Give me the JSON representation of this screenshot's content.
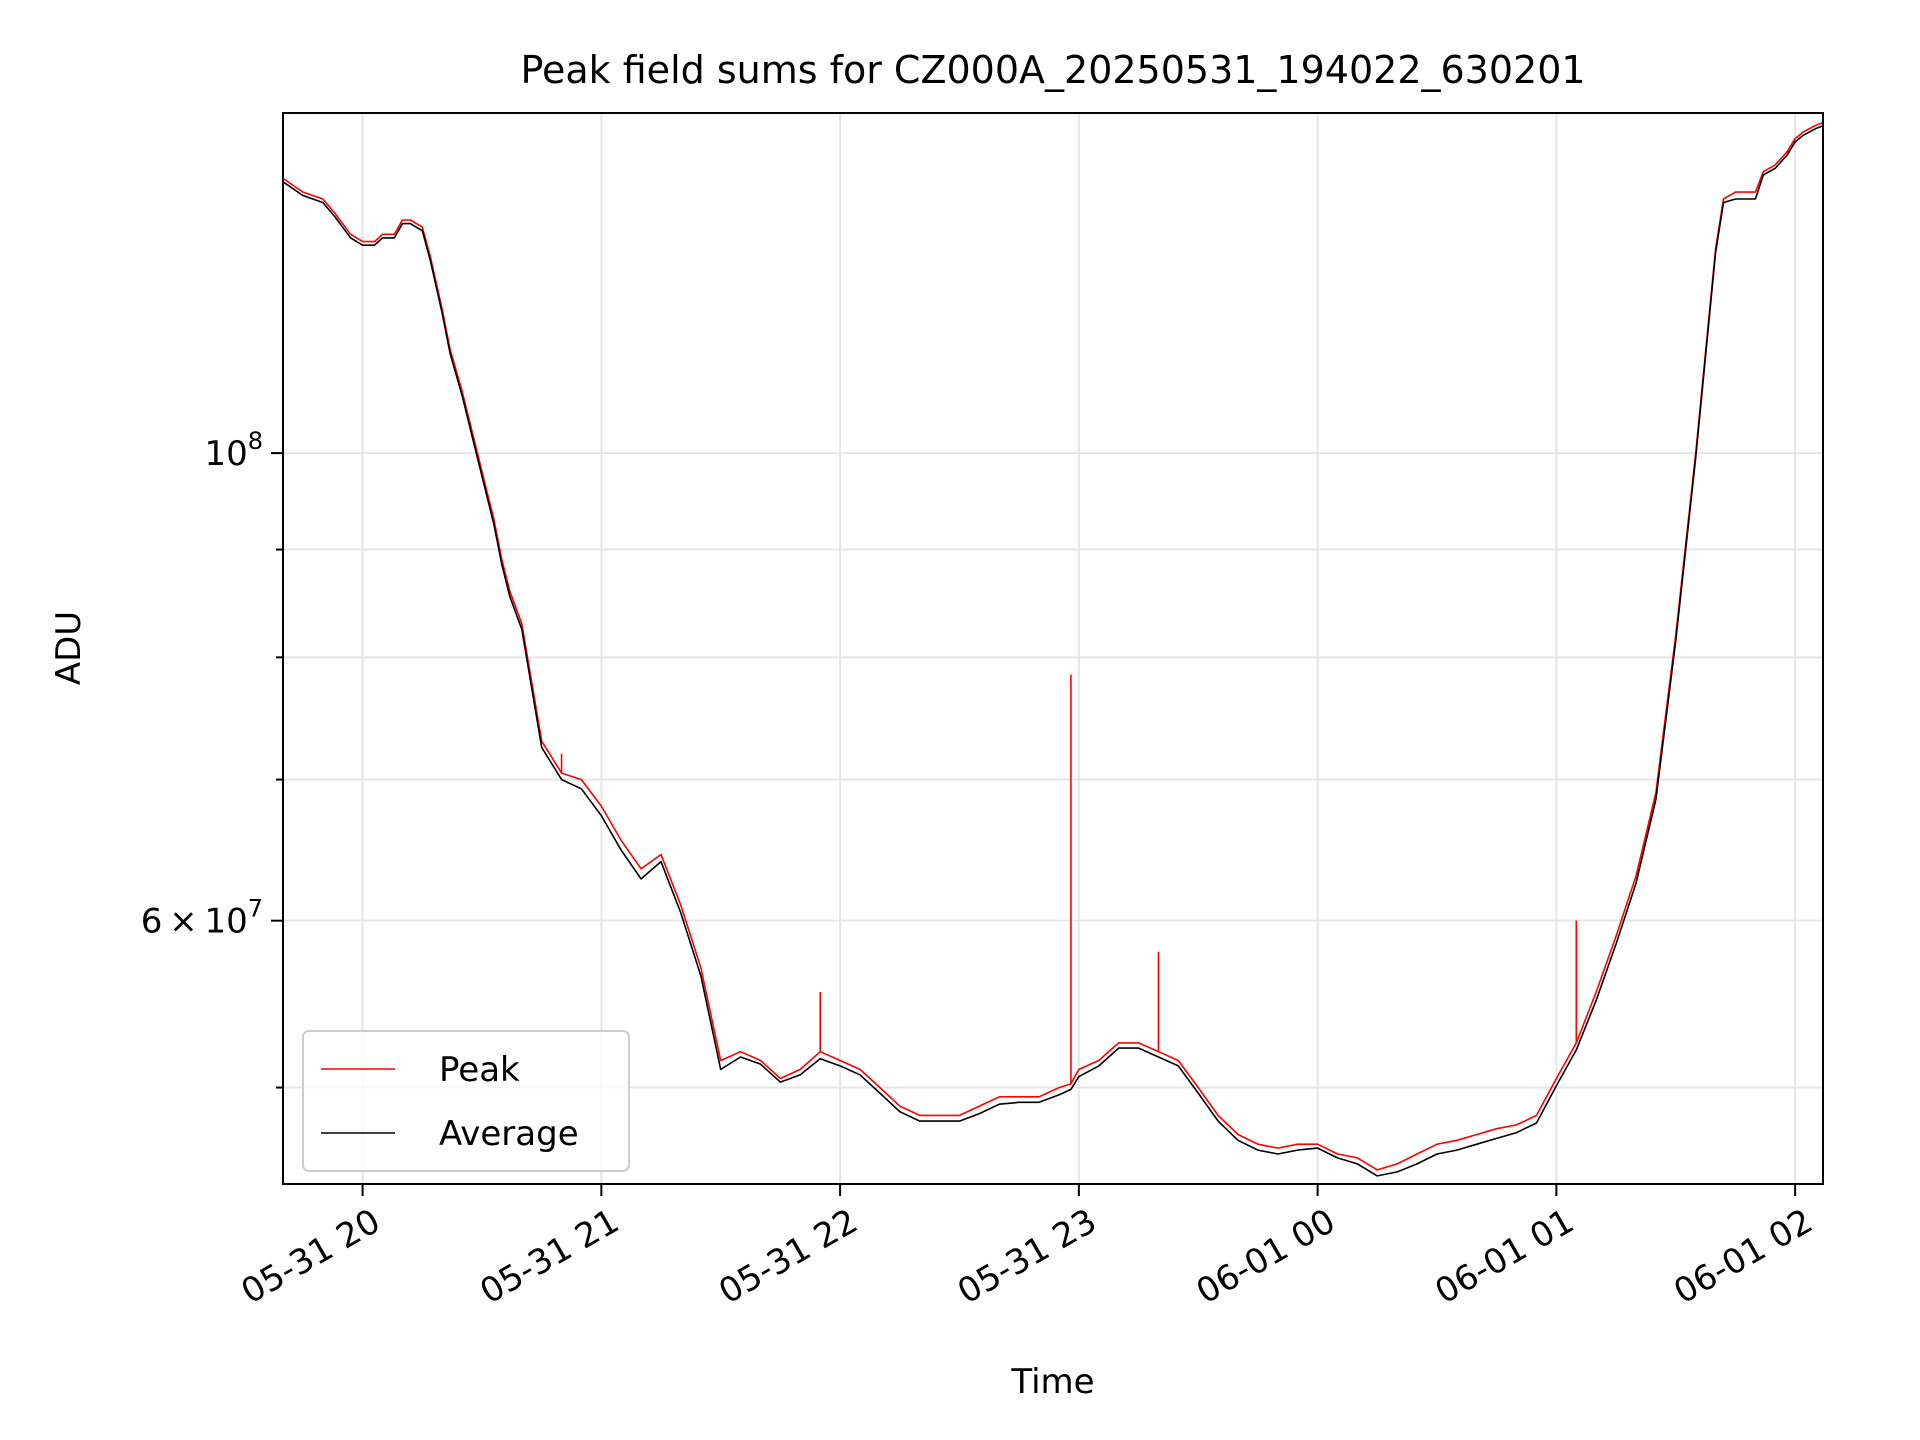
{
  "chart_data": {
    "type": "line",
    "title": "Peak field sums for CZ000A_20250531_194022_630201",
    "xlabel": "Time",
    "ylabel": "ADU",
    "x_scale": "time",
    "y_scale": "log",
    "xlim": [
      "2025-05-31 19:40",
      "2025-06-01 02:07"
    ],
    "ylim": [
      45000000,
      145000000
    ],
    "x_ticks": [
      {
        "value": "2025-05-31 20:00",
        "label": "05-31 20"
      },
      {
        "value": "2025-05-31 21:00",
        "label": "05-31 21"
      },
      {
        "value": "2025-05-31 22:00",
        "label": "05-31 22"
      },
      {
        "value": "2025-05-31 23:00",
        "label": "05-31 23"
      },
      {
        "value": "2025-06-01 00:00",
        "label": "06-01 00"
      },
      {
        "value": "2025-06-01 01:00",
        "label": "06-01 01"
      },
      {
        "value": "2025-06-01 02:00",
        "label": "06-01 02"
      }
    ],
    "y_major_ticks": [
      {
        "value": 60000000,
        "mantissa": "6",
        "exponent": "7"
      },
      {
        "value": 100000000,
        "mantissa": "",
        "exponent": "8"
      }
    ],
    "y_minor_ticks": [
      50000000,
      70000000,
      80000000,
      90000000
    ],
    "grid": true,
    "legend": {
      "position": "lower-left"
    },
    "series": [
      {
        "name": "Peak",
        "color": "#ff0000",
        "x": [
          "2025-05-31 19:40",
          "2025-05-31 19:45",
          "2025-05-31 19:50",
          "2025-05-31 19:53",
          "2025-05-31 19:57",
          "2025-05-31 20:00",
          "2025-05-31 20:03",
          "2025-05-31 20:05",
          "2025-05-31 20:08",
          "2025-05-31 20:10",
          "2025-05-31 20:12",
          "2025-05-31 20:15",
          "2025-05-31 20:17",
          "2025-05-31 20:20",
          "2025-05-31 20:22",
          "2025-05-31 20:25",
          "2025-05-31 20:30",
          "2025-05-31 20:33",
          "2025-05-31 20:35",
          "2025-05-31 20:37",
          "2025-05-31 20:40",
          "2025-05-31 20:45",
          "2025-05-31 20:50",
          "2025-05-31 20:55",
          "2025-05-31 21:00",
          "2025-05-31 21:05",
          "2025-05-31 21:10",
          "2025-05-31 21:15",
          "2025-05-31 21:20",
          "2025-05-31 21:25",
          "2025-05-31 21:30",
          "2025-05-31 21:35",
          "2025-05-31 21:40",
          "2025-05-31 21:45",
          "2025-05-31 21:50",
          "2025-05-31 21:55",
          "2025-05-31 22:00",
          "2025-05-31 22:05",
          "2025-05-31 22:10",
          "2025-05-31 22:15",
          "2025-05-31 22:20",
          "2025-05-31 22:25",
          "2025-05-31 22:30",
          "2025-05-31 22:35",
          "2025-05-31 22:40",
          "2025-05-31 22:45",
          "2025-05-31 22:50",
          "2025-05-31 22:55",
          "2025-05-31 22:58",
          "2025-05-31 23:00",
          "2025-05-31 23:05",
          "2025-05-31 23:10",
          "2025-05-31 23:15",
          "2025-05-31 23:20",
          "2025-05-31 23:25",
          "2025-05-31 23:30",
          "2025-05-31 23:35",
          "2025-05-31 23:40",
          "2025-05-31 23:45",
          "2025-05-31 23:50",
          "2025-05-31 23:55",
          "2025-06-01 00:00",
          "2025-06-01 00:05",
          "2025-06-01 00:10",
          "2025-06-01 00:15",
          "2025-06-01 00:20",
          "2025-06-01 00:25",
          "2025-06-01 00:30",
          "2025-06-01 00:35",
          "2025-06-01 00:40",
          "2025-06-01 00:45",
          "2025-06-01 00:50",
          "2025-06-01 00:55",
          "2025-06-01 01:00",
          "2025-06-01 01:05",
          "2025-06-01 01:10",
          "2025-06-01 01:15",
          "2025-06-01 01:20",
          "2025-06-01 01:25",
          "2025-06-01 01:30",
          "2025-06-01 01:35",
          "2025-06-01 01:40",
          "2025-06-01 01:42",
          "2025-06-01 01:45",
          "2025-06-01 01:50",
          "2025-06-01 01:52",
          "2025-06-01 01:55",
          "2025-06-01 01:58",
          "2025-06-01 02:00",
          "2025-06-01 02:02",
          "2025-06-01 02:05",
          "2025-06-01 02:07"
        ],
        "y": [
          135000000,
          133000000,
          132000000,
          130000000,
          127000000,
          126000000,
          126000000,
          127000000,
          127000000,
          129000000,
          129000000,
          128000000,
          124000000,
          117000000,
          112000000,
          107000000,
          98000000,
          93000000,
          89000000,
          86000000,
          83000000,
          73000000,
          70500000,
          70000000,
          68000000,
          65500000,
          63500000,
          64500000,
          61000000,
          57000000,
          51500000,
          52000000,
          51500000,
          50500000,
          51000000,
          52000000,
          51500000,
          51000000,
          50000000,
          49000000,
          48500000,
          48500000,
          48500000,
          49000000,
          49500000,
          49500000,
          49500000,
          50000000,
          50200000,
          51000000,
          51500000,
          52500000,
          52500000,
          52000000,
          51500000,
          50000000,
          48500000,
          47500000,
          47000000,
          46800000,
          47000000,
          47000000,
          46500000,
          46300000,
          45700000,
          46000000,
          46500000,
          47000000,
          47200000,
          47500000,
          47800000,
          48000000,
          48500000,
          50500000,
          52500000,
          55500000,
          59000000,
          63000000,
          69000000,
          82000000,
          100000000,
          125000000,
          132000000,
          133000000,
          133000000,
          136000000,
          137000000,
          139000000,
          141000000,
          142000000,
          143000000,
          143500000
        ]
      },
      {
        "name": "Average",
        "color": "#000000",
        "x": [
          "2025-05-31 19:40",
          "2025-05-31 19:45",
          "2025-05-31 19:50",
          "2025-05-31 19:53",
          "2025-05-31 19:57",
          "2025-05-31 20:00",
          "2025-05-31 20:03",
          "2025-05-31 20:05",
          "2025-05-31 20:08",
          "2025-05-31 20:10",
          "2025-05-31 20:12",
          "2025-05-31 20:15",
          "2025-05-31 20:17",
          "2025-05-31 20:20",
          "2025-05-31 20:22",
          "2025-05-31 20:25",
          "2025-05-31 20:30",
          "2025-05-31 20:33",
          "2025-05-31 20:35",
          "2025-05-31 20:37",
          "2025-05-31 20:40",
          "2025-05-31 20:45",
          "2025-05-31 20:50",
          "2025-05-31 20:55",
          "2025-05-31 21:00",
          "2025-05-31 21:05",
          "2025-05-31 21:10",
          "2025-05-31 21:15",
          "2025-05-31 21:20",
          "2025-05-31 21:25",
          "2025-05-31 21:30",
          "2025-05-31 21:35",
          "2025-05-31 21:40",
          "2025-05-31 21:45",
          "2025-05-31 21:50",
          "2025-05-31 21:55",
          "2025-05-31 22:00",
          "2025-05-31 22:05",
          "2025-05-31 22:10",
          "2025-05-31 22:15",
          "2025-05-31 22:20",
          "2025-05-31 22:25",
          "2025-05-31 22:30",
          "2025-05-31 22:35",
          "2025-05-31 22:40",
          "2025-05-31 22:45",
          "2025-05-31 22:50",
          "2025-05-31 22:55",
          "2025-05-31 22:58",
          "2025-05-31 23:00",
          "2025-05-31 23:05",
          "2025-05-31 23:10",
          "2025-05-31 23:15",
          "2025-05-31 23:20",
          "2025-05-31 23:25",
          "2025-05-31 23:30",
          "2025-05-31 23:35",
          "2025-05-31 23:40",
          "2025-05-31 23:45",
          "2025-05-31 23:50",
          "2025-05-31 23:55",
          "2025-06-01 00:00",
          "2025-06-01 00:05",
          "2025-06-01 00:10",
          "2025-06-01 00:15",
          "2025-06-01 00:20",
          "2025-06-01 00:25",
          "2025-06-01 00:30",
          "2025-06-01 00:35",
          "2025-06-01 00:40",
          "2025-06-01 00:45",
          "2025-06-01 00:50",
          "2025-06-01 00:55",
          "2025-06-01 01:00",
          "2025-06-01 01:05",
          "2025-06-01 01:10",
          "2025-06-01 01:15",
          "2025-06-01 01:20",
          "2025-06-01 01:25",
          "2025-06-01 01:30",
          "2025-06-01 01:35",
          "2025-06-01 01:40",
          "2025-06-01 01:42",
          "2025-06-01 01:45",
          "2025-06-01 01:50",
          "2025-06-01 01:52",
          "2025-06-01 01:55",
          "2025-06-01 01:58",
          "2025-06-01 02:00",
          "2025-06-01 02:02",
          "2025-06-01 02:05",
          "2025-06-01 02:07"
        ],
        "y": [
          134500000,
          132500000,
          131500000,
          129500000,
          126500000,
          125500000,
          125500000,
          126500000,
          126500000,
          128500000,
          128500000,
          127500000,
          123500000,
          116500000,
          111500000,
          106500000,
          97500000,
          92500000,
          88500000,
          85500000,
          82500000,
          72500000,
          70000000,
          69300000,
          67300000,
          64800000,
          62800000,
          64000000,
          60500000,
          56500000,
          51000000,
          51700000,
          51300000,
          50300000,
          50700000,
          51600000,
          51200000,
          50700000,
          49700000,
          48700000,
          48200000,
          48200000,
          48200000,
          48600000,
          49100000,
          49200000,
          49200000,
          49600000,
          49900000,
          50600000,
          51200000,
          52200000,
          52200000,
          51700000,
          51200000,
          49700000,
          48200000,
          47200000,
          46700000,
          46500000,
          46700000,
          46800000,
          46300000,
          46000000,
          45400000,
          45600000,
          46000000,
          46500000,
          46700000,
          47000000,
          47300000,
          47600000,
          48100000,
          50100000,
          52100000,
          55000000,
          58500000,
          62500000,
          68500000,
          81500000,
          99500000,
          124500000,
          131500000,
          132000000,
          132000000,
          135500000,
          136500000,
          138500000,
          140500000,
          141500000,
          142500000,
          143000000
        ]
      }
    ],
    "annotations": [
      {
        "series": "Peak",
        "x": "2025-05-31 21:55",
        "y": 55500000
      },
      {
        "series": "Peak",
        "x": "2025-05-31 22:58",
        "y": 78500000
      },
      {
        "series": "Peak",
        "x": "2025-05-31 23:20",
        "y": 58000000
      },
      {
        "series": "Peak",
        "x": "2025-06-01 01:05",
        "y": 60000000
      },
      {
        "series": "Peak",
        "x": "2025-05-31 20:50",
        "y": 72000000
      }
    ]
  }
}
